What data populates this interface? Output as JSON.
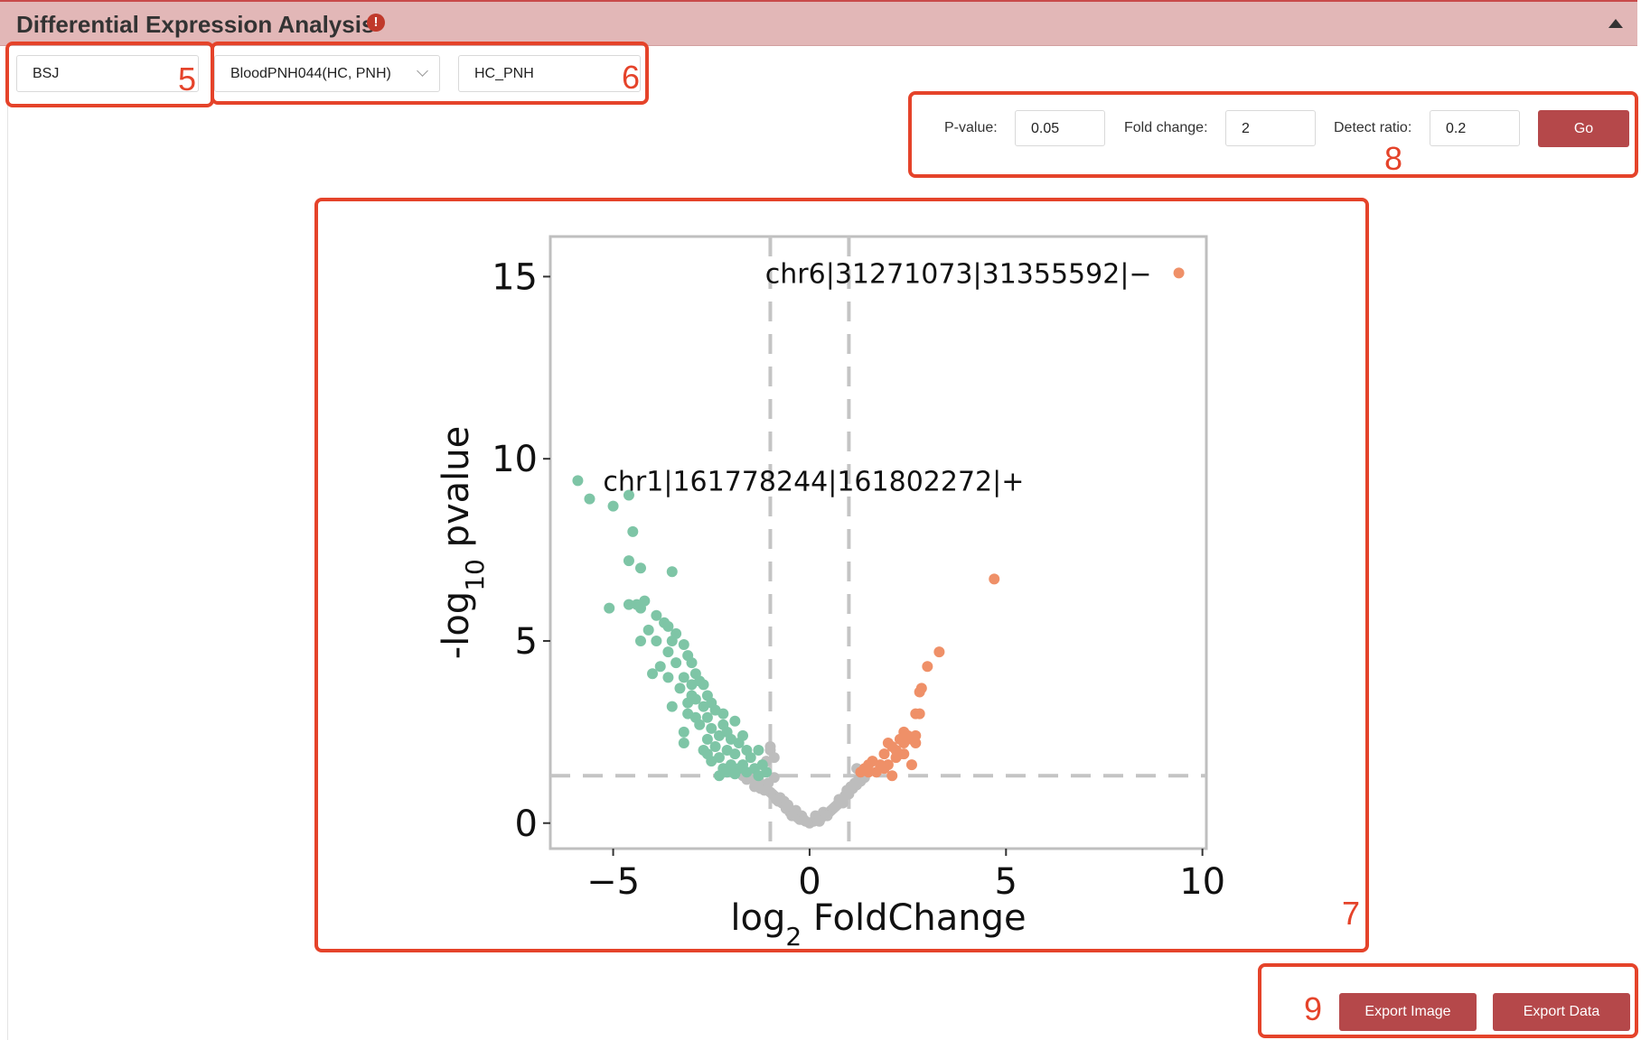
{
  "header": {
    "title": "Differential Expression Analysis",
    "info_icon": "!"
  },
  "controls": {
    "type_value": "BSJ",
    "dataset_value": "BloodPNH044(HC, PNH)",
    "comparison_value": "HC_PNH"
  },
  "filters": {
    "pvalue_label": "P-value:",
    "pvalue_value": "0.05",
    "foldchange_label": "Fold change:",
    "foldchange_value": "2",
    "detect_label": "Detect ratio:",
    "detect_value": "0.2",
    "go_label": "Go"
  },
  "export": {
    "image_label": "Export Image",
    "data_label": "Export Data"
  },
  "annotations": [
    "5",
    "6",
    "7",
    "8",
    "9"
  ],
  "colors": {
    "up": "#ef9068",
    "down": "#7ec5a6",
    "ns": "#bdbdbd",
    "accent": "#b5484a",
    "annotation": "#e5432a"
  },
  "chart_data": {
    "type": "scatter",
    "xlabel": "log2 FoldChange",
    "ylabel": "-log10 pvalue",
    "xlim": [
      -6.6,
      10.1
    ],
    "ylim": [
      -0.7,
      16.1
    ],
    "xticks": [
      -5,
      0,
      5,
      10
    ],
    "yticks": [
      0,
      5,
      10,
      15
    ],
    "thresholds": {
      "x": [
        -1,
        1
      ],
      "y": 1.3
    },
    "labels": [
      {
        "text": "chr6|31271073|31355592|−",
        "x": 9.4,
        "y": 15.1
      },
      {
        "text": "chr1|161778244|161802272|+",
        "x": -5.9,
        "y": 9.4
      }
    ],
    "series": [
      {
        "name": "up",
        "color": "#ef9068",
        "points": [
          [
            9.4,
            15.1
          ],
          [
            4.7,
            6.7
          ],
          [
            3.3,
            4.7
          ],
          [
            3.0,
            4.3
          ],
          [
            2.8,
            3.6
          ],
          [
            2.85,
            3.7
          ],
          [
            2.7,
            3.0
          ],
          [
            2.8,
            3.0
          ],
          [
            2.6,
            2.3
          ],
          [
            2.7,
            2.4
          ],
          [
            2.4,
            2.5
          ],
          [
            2.5,
            2.4
          ],
          [
            2.3,
            2.3
          ],
          [
            2.2,
            2.0
          ],
          [
            2.0,
            2.2
          ],
          [
            1.9,
            1.9
          ],
          [
            2.1,
            2.1
          ],
          [
            1.8,
            1.6
          ],
          [
            1.5,
            1.6
          ],
          [
            1.4,
            1.5
          ],
          [
            1.6,
            1.7
          ],
          [
            2.4,
            1.9
          ],
          [
            2.6,
            1.6
          ],
          [
            1.7,
            1.4
          ],
          [
            2.0,
            1.6
          ],
          [
            2.2,
            1.8
          ],
          [
            1.3,
            1.4
          ],
          [
            1.5,
            1.4
          ],
          [
            2.4,
            2.2
          ],
          [
            2.3,
            1.9
          ],
          [
            1.9,
            1.5
          ],
          [
            2.7,
            2.2
          ],
          [
            2.1,
            1.3
          ]
        ]
      },
      {
        "name": "down",
        "color": "#7ec5a6",
        "points": [
          [
            -5.9,
            9.4
          ],
          [
            -5.6,
            8.9
          ],
          [
            -5.0,
            8.7
          ],
          [
            -4.6,
            9.0
          ],
          [
            -4.5,
            8.0
          ],
          [
            -4.6,
            7.2
          ],
          [
            -4.3,
            7.0
          ],
          [
            -3.5,
            6.9
          ],
          [
            -5.1,
            5.9
          ],
          [
            -4.4,
            6.0
          ],
          [
            -4.6,
            6.0
          ],
          [
            -4.2,
            6.1
          ],
          [
            -4.3,
            5.9
          ],
          [
            -3.9,
            5.7
          ],
          [
            -3.7,
            5.5
          ],
          [
            -3.6,
            5.4
          ],
          [
            -4.1,
            5.3
          ],
          [
            -4.3,
            5.0
          ],
          [
            -3.9,
            5.0
          ],
          [
            -3.5,
            5.0
          ],
          [
            -3.2,
            4.9
          ],
          [
            -3.1,
            4.6
          ],
          [
            -3.4,
            4.4
          ],
          [
            -3.8,
            4.3
          ],
          [
            -4.0,
            4.1
          ],
          [
            -3.6,
            4.0
          ],
          [
            -2.9,
            4.1
          ],
          [
            -3.2,
            4.0
          ],
          [
            -3.0,
            3.8
          ],
          [
            -2.8,
            3.9
          ],
          [
            -3.3,
            3.7
          ],
          [
            -2.6,
            3.5
          ],
          [
            -2.9,
            3.4
          ],
          [
            -3.1,
            3.3
          ],
          [
            -2.7,
            3.2
          ],
          [
            -2.4,
            3.1
          ],
          [
            -3.5,
            3.2
          ],
          [
            -2.6,
            2.9
          ],
          [
            -2.9,
            2.9
          ],
          [
            -3.1,
            3.0
          ],
          [
            -2.5,
            2.6
          ],
          [
            -2.2,
            2.7
          ],
          [
            -2.8,
            2.7
          ],
          [
            -3.2,
            2.5
          ],
          [
            -2.3,
            2.4
          ],
          [
            -2.6,
            2.3
          ],
          [
            -2.0,
            2.3
          ],
          [
            -1.8,
            2.2
          ],
          [
            -2.4,
            2.1
          ],
          [
            -2.1,
            2.0
          ],
          [
            -1.6,
            2.0
          ],
          [
            -2.7,
            2.0
          ],
          [
            -1.9,
            1.9
          ],
          [
            -2.3,
            1.8
          ],
          [
            -1.5,
            1.8
          ],
          [
            -2.5,
            1.7
          ],
          [
            -2.0,
            1.6
          ],
          [
            -1.7,
            1.6
          ],
          [
            -1.2,
            1.6
          ],
          [
            -2.2,
            1.5
          ],
          [
            -1.8,
            1.5
          ],
          [
            -1.4,
            1.5
          ],
          [
            -2.1,
            1.4
          ],
          [
            -1.6,
            1.4
          ],
          [
            -1.1,
            1.4
          ],
          [
            -3.2,
            2.2
          ],
          [
            -2.3,
            1.3
          ],
          [
            -1.9,
            1.35
          ],
          [
            -1.3,
            1.3
          ],
          [
            -3.0,
            3.5
          ],
          [
            -2.7,
            3.8
          ],
          [
            -2.5,
            3.3
          ],
          [
            -1.9,
            2.8
          ],
          [
            -2.1,
            2.5
          ],
          [
            -1.3,
            2.0
          ],
          [
            -3.4,
            5.2
          ],
          [
            -3.0,
            4.4
          ],
          [
            -2.2,
            3.0
          ],
          [
            -1.7,
            2.4
          ],
          [
            -2.6,
            1.9
          ],
          [
            -3.6,
            4.7
          ]
        ]
      },
      {
        "name": "ns",
        "color": "#bdbdbd",
        "points": [
          [
            0,
            0
          ],
          [
            0.1,
            0.05
          ],
          [
            -0.1,
            0.05
          ],
          [
            0.2,
            0.1
          ],
          [
            -0.2,
            0.1
          ],
          [
            0.3,
            0.15
          ],
          [
            -0.3,
            0.15
          ],
          [
            0.4,
            0.25
          ],
          [
            -0.4,
            0.25
          ],
          [
            0.5,
            0.3
          ],
          [
            -0.5,
            0.3
          ],
          [
            0.6,
            0.4
          ],
          [
            -0.6,
            0.4
          ],
          [
            0.7,
            0.5
          ],
          [
            -0.7,
            0.55
          ],
          [
            0.8,
            0.6
          ],
          [
            -0.8,
            0.6
          ],
          [
            0.9,
            0.75
          ],
          [
            -0.9,
            0.75
          ],
          [
            1.0,
            0.8
          ],
          [
            -1.0,
            0.85
          ],
          [
            1.1,
            0.95
          ],
          [
            -1.1,
            0.95
          ],
          [
            1.2,
            1.05
          ],
          [
            -1.2,
            1.05
          ],
          [
            1.3,
            1.15
          ],
          [
            -1.3,
            1.2
          ],
          [
            -1.4,
            1.2
          ],
          [
            1.4,
            1.25
          ],
          [
            -0.2,
            0.2
          ],
          [
            0.15,
            0.2
          ],
          [
            0.35,
            0.3
          ],
          [
            -0.35,
            0.35
          ],
          [
            0.55,
            0.35
          ],
          [
            -0.55,
            0.5
          ],
          [
            0.75,
            0.65
          ],
          [
            -0.75,
            0.7
          ],
          [
            0.95,
            0.9
          ],
          [
            -0.95,
            0.8
          ],
          [
            1.05,
            1.0
          ],
          [
            -1.05,
            1.1
          ],
          [
            -1.5,
            1.25
          ],
          [
            -1.6,
            1.2
          ],
          [
            -1.25,
            0.95
          ],
          [
            0.65,
            0.45
          ],
          [
            -0.65,
            0.6
          ],
          [
            0.45,
            0.2
          ],
          [
            -0.45,
            0.2
          ],
          [
            1.15,
            1.1
          ],
          [
            -1.15,
            0.9
          ],
          [
            0.85,
            0.55
          ],
          [
            -0.85,
            0.65
          ],
          [
            1.25,
            1.2
          ],
          [
            -0.9,
            1.25
          ],
          [
            -1.0,
            2.1
          ],
          [
            -1.0,
            2.0
          ],
          [
            -0.9,
            1.8
          ],
          [
            -1.1,
            1.7
          ],
          [
            1.2,
            1.5
          ],
          [
            -1.4,
            1.0
          ],
          [
            -0.25,
            0.1
          ],
          [
            0.25,
            0.05
          ],
          [
            -0.15,
            0.1
          ],
          [
            1.35,
            1.3
          ],
          [
            -1.3,
            1.15
          ],
          [
            -1.7,
            1.3
          ]
        ]
      }
    ]
  }
}
